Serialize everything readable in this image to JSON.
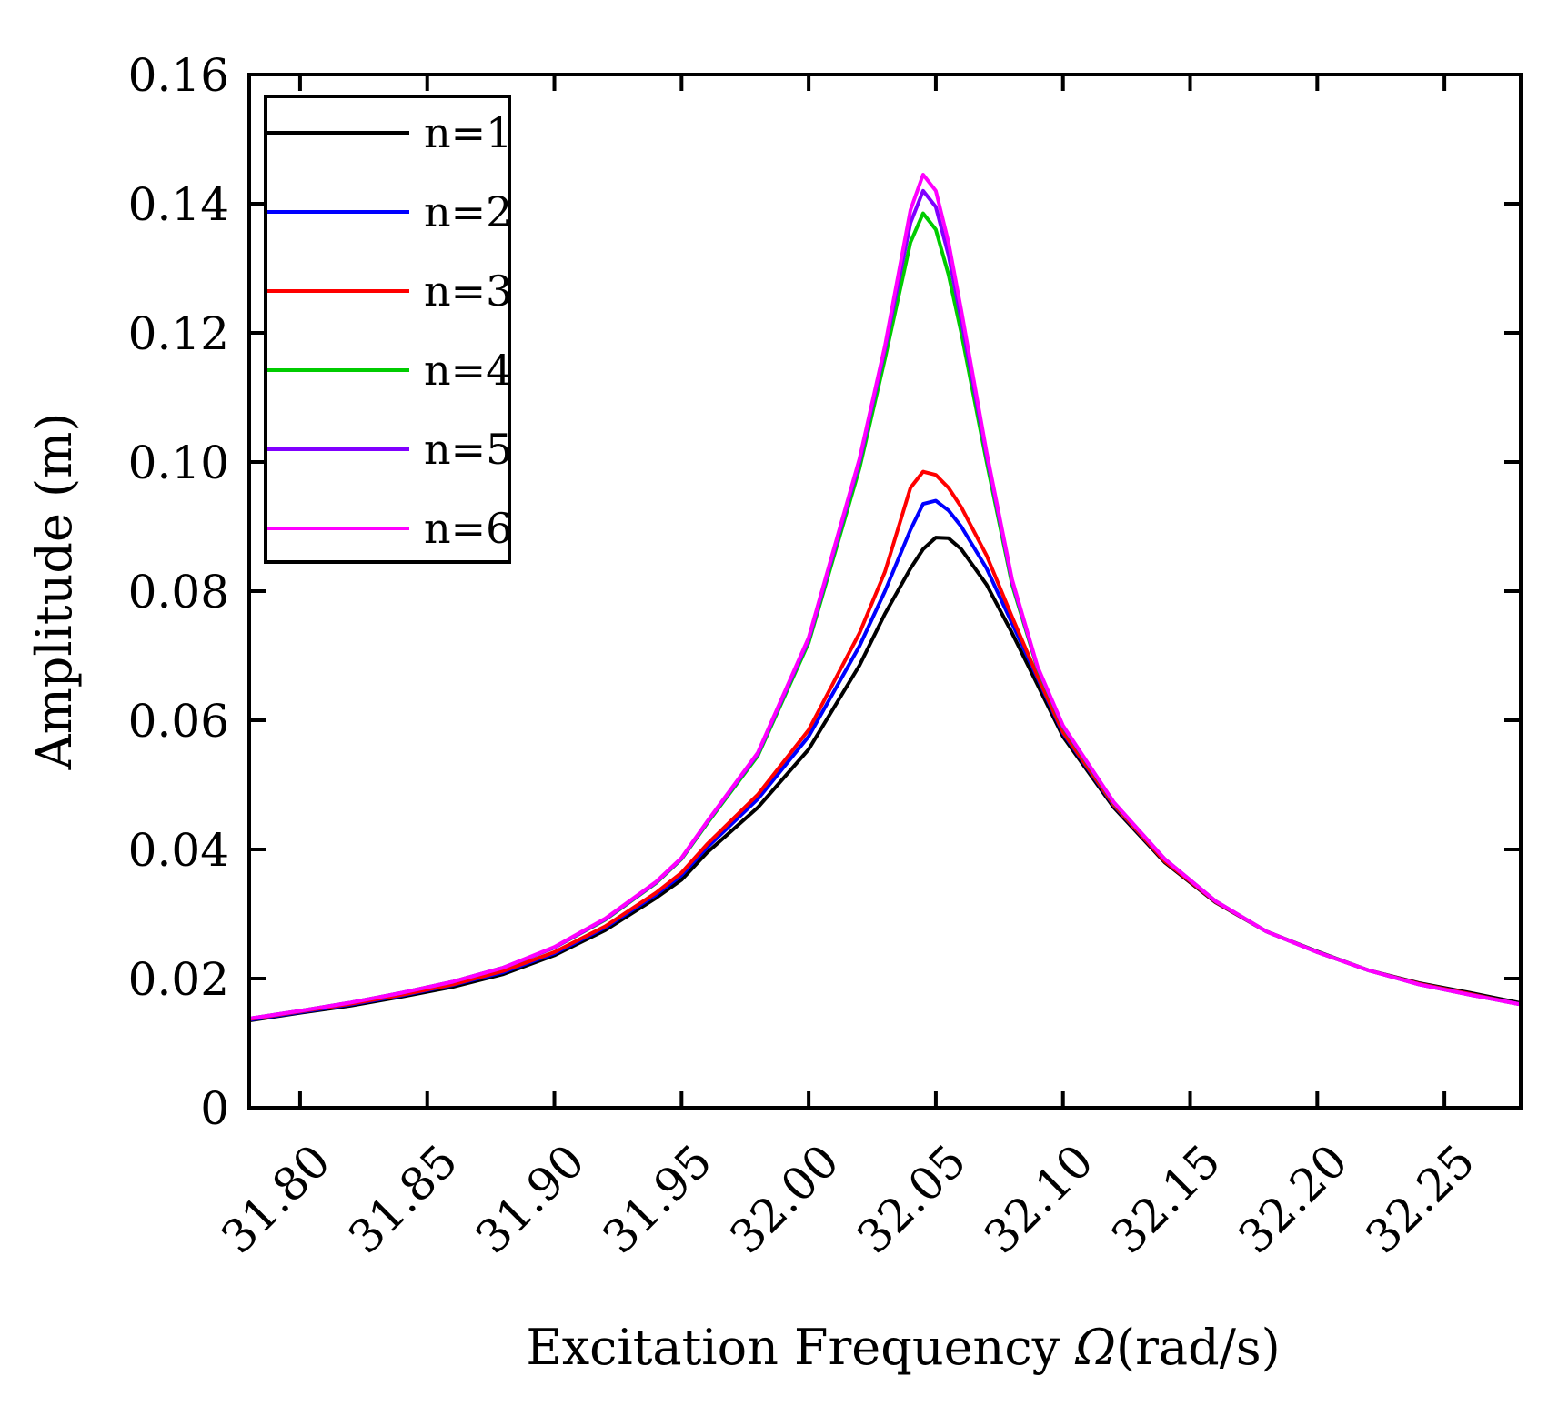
{
  "chart_data": {
    "type": "line",
    "title": "",
    "xlabel_prefix": "Excitation Frequency ",
    "xlabel_symbol": "Ω",
    "xlabel_suffix": "(rad/s)",
    "ylabel": "Amplitude (m)",
    "xlim": [
      31.78,
      32.28
    ],
    "ylim": [
      0,
      0.16
    ],
    "x_ticks": [
      31.8,
      31.85,
      31.9,
      31.95,
      32.0,
      32.05,
      32.1,
      32.15,
      32.2,
      32.25
    ],
    "x_tick_labels": [
      "31.80",
      "31.85",
      "31.90",
      "31.95",
      "32.00",
      "32.05",
      "32.10",
      "32.15",
      "32.20",
      "32.25"
    ],
    "y_ticks": [
      0,
      0.02,
      0.04,
      0.06,
      0.08,
      0.1,
      0.12,
      0.14,
      0.16
    ],
    "y_tick_labels": [
      "0",
      "0.02",
      "0.04",
      "0.06",
      "0.08",
      "0.10",
      "0.12",
      "0.14",
      "0.16"
    ],
    "grid": false,
    "legend_position": "top-left",
    "series": [
      {
        "name": "n=1",
        "color": "#000000",
        "x": [
          31.78,
          31.8,
          31.82,
          31.84,
          31.86,
          31.88,
          31.9,
          31.92,
          31.94,
          31.95,
          31.96,
          31.98,
          32.0,
          32.02,
          32.03,
          32.04,
          32.045,
          32.05,
          32.055,
          32.06,
          32.07,
          32.08,
          32.09,
          32.1,
          32.12,
          32.14,
          32.16,
          32.18,
          32.2,
          32.22,
          32.24,
          32.26,
          32.28
        ],
        "y": [
          0.0135,
          0.0147,
          0.0158,
          0.0172,
          0.0187,
          0.0207,
          0.0236,
          0.0275,
          0.0325,
          0.0353,
          0.0395,
          0.0465,
          0.0555,
          0.0685,
          0.0765,
          0.0835,
          0.0865,
          0.0883,
          0.0882,
          0.0865,
          0.081,
          0.0735,
          0.0655,
          0.0575,
          0.0465,
          0.038,
          0.0318,
          0.0273,
          0.0242,
          0.0213,
          0.0193,
          0.0178,
          0.0162
        ]
      },
      {
        "name": "n=2",
        "color": "#0000ff",
        "x": [
          31.78,
          31.8,
          31.82,
          31.84,
          31.86,
          31.88,
          31.9,
          31.92,
          31.94,
          31.95,
          31.96,
          31.98,
          32.0,
          32.02,
          32.03,
          32.04,
          32.045,
          32.05,
          32.055,
          32.06,
          32.07,
          32.08,
          32.09,
          32.1,
          32.12,
          32.14,
          32.16,
          32.18,
          32.2,
          32.22,
          32.24,
          32.26,
          32.28
        ],
        "y": [
          0.0136,
          0.0148,
          0.016,
          0.0174,
          0.019,
          0.021,
          0.0239,
          0.0279,
          0.033,
          0.036,
          0.0403,
          0.0478,
          0.0575,
          0.0715,
          0.08,
          0.0895,
          0.0935,
          0.094,
          0.0925,
          0.09,
          0.0835,
          0.075,
          0.0665,
          0.058,
          0.0468,
          0.0382,
          0.0319,
          0.0273,
          0.0241,
          0.0213,
          0.0192,
          0.0176,
          0.016
        ]
      },
      {
        "name": "n=3",
        "color": "#ff0000",
        "x": [
          31.78,
          31.8,
          31.82,
          31.84,
          31.86,
          31.88,
          31.9,
          31.92,
          31.94,
          31.95,
          31.96,
          31.98,
          32.0,
          32.02,
          32.03,
          32.04,
          32.045,
          32.05,
          32.055,
          32.06,
          32.07,
          32.08,
          32.09,
          32.1,
          32.12,
          32.14,
          32.16,
          32.18,
          32.2,
          32.22,
          32.24,
          32.26,
          32.28
        ],
        "y": [
          0.0137,
          0.0149,
          0.0161,
          0.0175,
          0.0191,
          0.0212,
          0.0241,
          0.0281,
          0.0333,
          0.0364,
          0.0408,
          0.0485,
          0.0585,
          0.0735,
          0.083,
          0.096,
          0.0985,
          0.098,
          0.096,
          0.093,
          0.0855,
          0.076,
          0.0668,
          0.0582,
          0.0469,
          0.0382,
          0.0319,
          0.0273,
          0.0241,
          0.0213,
          0.0192,
          0.0176,
          0.016
        ]
      },
      {
        "name": "n=4",
        "color": "#00cc00",
        "x": [
          31.78,
          31.8,
          31.82,
          31.84,
          31.86,
          31.88,
          31.9,
          31.92,
          31.94,
          31.95,
          31.96,
          31.98,
          32.0,
          32.02,
          32.03,
          32.04,
          32.045,
          32.05,
          32.055,
          32.06,
          32.07,
          32.08,
          32.09,
          32.1,
          32.12,
          32.14,
          32.16,
          32.18,
          32.2,
          32.22,
          32.24,
          32.26,
          32.28
        ],
        "y": [
          0.0138,
          0.015,
          0.0163,
          0.0178,
          0.0195,
          0.0217,
          0.0248,
          0.0291,
          0.0348,
          0.0385,
          0.044,
          0.0545,
          0.072,
          0.099,
          0.116,
          0.134,
          0.1385,
          0.136,
          0.129,
          0.12,
          0.1,
          0.081,
          0.068,
          0.059,
          0.0472,
          0.0385,
          0.032,
          0.0273,
          0.0241,
          0.0213,
          0.0191,
          0.0175,
          0.016
        ]
      },
      {
        "name": "n=5",
        "color": "#8000ff",
        "x": [
          31.78,
          31.8,
          31.82,
          31.84,
          31.86,
          31.88,
          31.9,
          31.92,
          31.94,
          31.95,
          31.96,
          31.98,
          32.0,
          32.02,
          32.03,
          32.04,
          32.045,
          32.05,
          32.055,
          32.06,
          32.07,
          32.08,
          32.09,
          32.1,
          32.12,
          32.14,
          32.16,
          32.18,
          32.2,
          32.22,
          32.24,
          32.26,
          32.28
        ],
        "y": [
          0.0138,
          0.015,
          0.0163,
          0.0178,
          0.0195,
          0.0217,
          0.0248,
          0.0292,
          0.0349,
          0.0386,
          0.0442,
          0.0548,
          0.0725,
          0.1,
          0.1175,
          0.137,
          0.142,
          0.1395,
          0.132,
          0.122,
          0.101,
          0.0815,
          0.0682,
          0.0591,
          0.0473,
          0.0385,
          0.032,
          0.0273,
          0.0241,
          0.0213,
          0.0191,
          0.0175,
          0.016
        ]
      },
      {
        "name": "n=6",
        "color": "#ff00ff",
        "x": [
          31.78,
          31.8,
          31.82,
          31.84,
          31.86,
          31.88,
          31.9,
          31.92,
          31.94,
          31.95,
          31.96,
          31.98,
          32.0,
          32.02,
          32.03,
          32.04,
          32.045,
          32.05,
          32.055,
          32.06,
          32.07,
          32.08,
          32.09,
          32.1,
          32.12,
          32.14,
          32.16,
          32.18,
          32.2,
          32.22,
          32.24,
          32.26,
          32.28
        ],
        "y": [
          0.0138,
          0.015,
          0.0163,
          0.0178,
          0.0195,
          0.0217,
          0.0249,
          0.0293,
          0.035,
          0.0387,
          0.0443,
          0.055,
          0.0728,
          0.1005,
          0.118,
          0.139,
          0.1445,
          0.142,
          0.134,
          0.1235,
          0.1015,
          0.0818,
          0.0683,
          0.0592,
          0.0473,
          0.0385,
          0.032,
          0.0273,
          0.0241,
          0.0213,
          0.0191,
          0.0175,
          0.016
        ]
      }
    ]
  }
}
